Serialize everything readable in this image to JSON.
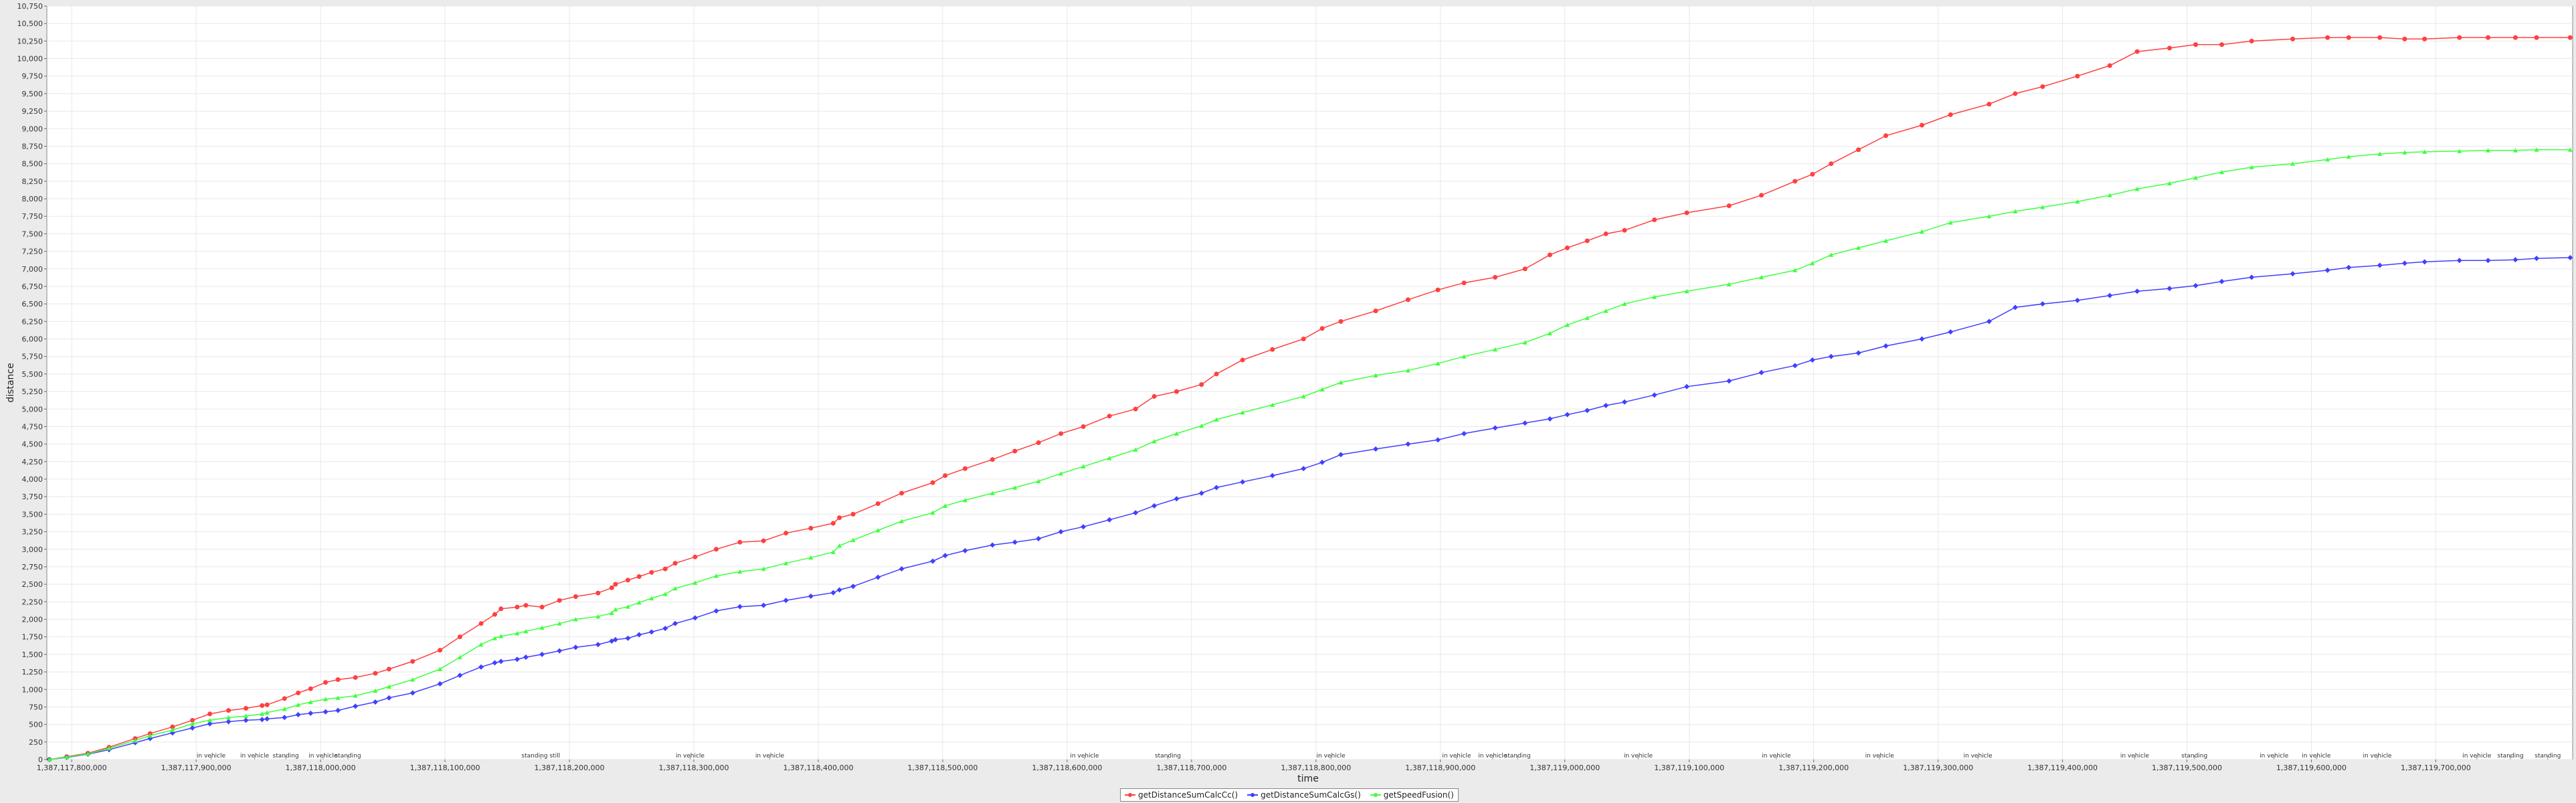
{
  "chart_data": {
    "type": "line",
    "title": "",
    "xlabel": "time",
    "ylabel": "distance",
    "xlim": [
      1387117780000,
      1387119810000
    ],
    "ylim": [
      0,
      10750
    ],
    "grid": true,
    "legend_position": "bottom-center",
    "x_ticks": [
      1387117800000,
      1387117900000,
      1387118000000,
      1387118100000,
      1387118200000,
      1387118300000,
      1387118400000,
      1387118500000,
      1387118600000,
      1387118700000,
      1387118800000,
      1387118900000,
      1387119000000,
      1387119100000,
      1387119200000,
      1387119300000,
      1387119400000,
      1387119500000,
      1387119600000,
      1387119700000
    ],
    "x_tick_labels": [
      "1,387,117,800,000",
      "1,387,117,900,000",
      "1,387,118,000,000",
      "1,387,118,100,000",
      "1,387,118,200,000",
      "1,387,118,300,000",
      "1,387,118,400,000",
      "1,387,118,500,000",
      "1,387,118,600,000",
      "1,387,118,700,000",
      "1,387,118,800,000",
      "1,387,118,900,000",
      "1,387,119,000,000",
      "1,387,119,100,000",
      "1,387,119,200,000",
      "1,387,119,300,000",
      "1,387,119,400,000",
      "1,387,119,500,000",
      "1,387,119,600,000",
      "1,387,119,700,000"
    ],
    "y_ticks": [
      0,
      250,
      500,
      750,
      1000,
      1250,
      1500,
      1750,
      2000,
      2250,
      2500,
      2750,
      3000,
      3250,
      3500,
      3750,
      4000,
      4250,
      4500,
      4750,
      5000,
      5250,
      5500,
      5750,
      6000,
      6250,
      6500,
      6750,
      7000,
      7250,
      7500,
      7750,
      8000,
      8250,
      8500,
      8750,
      9000,
      9250,
      9500,
      9750,
      10000,
      10250,
      10500,
      10750
    ],
    "y_tick_labels": [
      "0",
      "250",
      "500",
      "750",
      "1,000",
      "1,250",
      "1,500",
      "1,750",
      "2,000",
      "2,250",
      "2,500",
      "2,750",
      "3,000",
      "3,250",
      "3,500",
      "3,750",
      "4,000",
      "4,250",
      "4,500",
      "4,750",
      "5,000",
      "5,250",
      "5,500",
      "5,750",
      "6,000",
      "6,250",
      "6,500",
      "6,750",
      "7,000",
      "7,250",
      "7,500",
      "7,750",
      "8,000",
      "8,250",
      "8,500",
      "8,750",
      "9,000",
      "9,250",
      "9,500",
      "9,750",
      "10,000",
      "10,250",
      "10,500",
      "10,750"
    ],
    "activity_annotations": [
      {
        "x": 1387117912000,
        "label": "in vehicle"
      },
      {
        "x": 1387117947000,
        "label": "in vehicle"
      },
      {
        "x": 1387117972000,
        "label": "standing"
      },
      {
        "x": 1387118002000,
        "label": "in vehicle"
      },
      {
        "x": 1387118022000,
        "label": "standing"
      },
      {
        "x": 1387118177000,
        "label": "standing still"
      },
      {
        "x": 1387118297000,
        "label": "in vehicle"
      },
      {
        "x": 1387118361000,
        "label": "in vehicle"
      },
      {
        "x": 1387118614000,
        "label": "in vehicle"
      },
      {
        "x": 1387118681000,
        "label": "standing"
      },
      {
        "x": 1387118812000,
        "label": "in vehicle"
      },
      {
        "x": 1387118913000,
        "label": "in vehicle"
      },
      {
        "x": 1387118942000,
        "label": "in vehicle"
      },
      {
        "x": 1387118962000,
        "label": "standing"
      },
      {
        "x": 1387119059000,
        "label": "in vehicle"
      },
      {
        "x": 1387119170000,
        "label": "in vehicle"
      },
      {
        "x": 1387119253000,
        "label": "in vehicle"
      },
      {
        "x": 1387119332000,
        "label": "in vehicle"
      },
      {
        "x": 1387119458000,
        "label": "in vehicle"
      },
      {
        "x": 1387119506000,
        "label": "standing"
      },
      {
        "x": 1387119570000,
        "label": "in vehicle"
      },
      {
        "x": 1387119604000,
        "label": "in vehicle"
      },
      {
        "x": 1387119653000,
        "label": "in vehicle"
      },
      {
        "x": 1387119733000,
        "label": "in vehicle"
      },
      {
        "x": 1387119760000,
        "label": "standing"
      },
      {
        "x": 1387119790000,
        "label": "standing"
      }
    ],
    "series": [
      {
        "name": "getDistanceSumCalcCc()",
        "color": "#ff4040",
        "x": [
          1387117782000,
          1387117796000,
          1387117813000,
          1387117830000,
          1387117851000,
          1387117863000,
          1387117881000,
          1387117897000,
          1387117911000,
          1387117926000,
          1387117940000,
          1387117953000,
          1387117957000,
          1387117971000,
          1387117982000,
          1387117992000,
          1387118004000,
          1387118014000,
          1387118028000,
          1387118044000,
          1387118055000,
          1387118074000,
          1387118096000,
          1387118112000,
          1387118129000,
          1387118140000,
          1387118145000,
          1387118158000,
          1387118165000,
          1387118178000,
          1387118192000,
          1387118205000,
          1387118223000,
          1387118234000,
          1387118237000,
          1387118247000,
          1387118256000,
          1387118266000,
          1387118277000,
          1387118285000,
          1387118301000,
          1387118318000,
          1387118337000,
          1387118356000,
          1387118374000,
          1387118394000,
          1387118412000,
          1387118417000,
          1387118428000,
          1387118448000,
          1387118467000,
          1387118492000,
          1387118502000,
          1387118518000,
          1387118540000,
          1387118558000,
          1387118577000,
          1387118595000,
          1387118613000,
          1387118634000,
          1387118655000,
          1387118670000,
          1387118688000,
          1387118708000,
          1387118720000,
          1387118741000,
          1387118765000,
          1387118790000,
          1387118805000,
          1387118820000,
          1387118848000,
          1387118874000,
          1387118898000,
          1387118919000,
          1387118944000,
          1387118968000,
          1387118988000,
          1387119002000,
          1387119018000,
          1387119033000,
          1387119048000,
          1387119072000,
          1387119098000,
          1387119132000,
          1387119158000,
          1387119185000,
          1387119199000,
          1387119214000,
          1387119236000,
          1387119258000,
          1387119287000,
          1387119310000,
          1387119341000,
          1387119362000,
          1387119384000,
          1387119412000,
          1387119438000,
          1387119460000,
          1387119486000,
          1387119507000,
          1387119528000,
          1387119552000,
          1387119585000,
          1387119613000,
          1387119630000,
          1387119655000,
          1387119675000,
          1387119691000,
          1387119719000,
          1387119742000,
          1387119764000,
          1387119781000,
          1387119808000
        ],
        "values": [
          0,
          40,
          90,
          175,
          300,
          370,
          465,
          560,
          650,
          700,
          730,
          770,
          780,
          870,
          950,
          1010,
          1100,
          1140,
          1170,
          1230,
          1290,
          1400,
          1560,
          1750,
          1940,
          2070,
          2150,
          2175,
          2200,
          2175,
          2270,
          2325,
          2375,
          2450,
          2500,
          2560,
          2610,
          2670,
          2720,
          2800,
          2890,
          3000,
          3100,
          3120,
          3230,
          3300,
          3370,
          3450,
          3500,
          3650,
          3800,
          3950,
          4050,
          4150,
          4280,
          4400,
          4520,
          4650,
          4750,
          4900,
          5000,
          5180,
          5250,
          5350,
          5500,
          5700,
          5850,
          6000,
          6150,
          6250,
          6400,
          6560,
          6700,
          6800,
          6880,
          7000,
          7200,
          7300,
          7400,
          7500,
          7550,
          7700,
          7800,
          7900,
          8050,
          8250,
          8350,
          8500,
          8700,
          8900,
          9050,
          9200,
          9350,
          9500,
          9600,
          9750,
          9900,
          10100,
          10150,
          10200,
          10200,
          10250,
          10280,
          10300,
          10300,
          10300,
          10280,
          10280,
          10300,
          10300,
          10300,
          10300,
          10300
        ]
      },
      {
        "name": "getDistanceSumCalcGs()",
        "color": "#4040ff",
        "x": [
          1387117782000,
          1387117796000,
          1387117813000,
          1387117830000,
          1387117851000,
          1387117863000,
          1387117881000,
          1387117897000,
          1387117911000,
          1387117926000,
          1387117940000,
          1387117953000,
          1387117957000,
          1387117971000,
          1387117982000,
          1387117992000,
          1387118004000,
          1387118014000,
          1387118028000,
          1387118044000,
          1387118055000,
          1387118074000,
          1387118096000,
          1387118112000,
          1387118129000,
          1387118140000,
          1387118145000,
          1387118158000,
          1387118165000,
          1387118178000,
          1387118192000,
          1387118205000,
          1387118223000,
          1387118234000,
          1387118237000,
          1387118247000,
          1387118256000,
          1387118266000,
          1387118277000,
          1387118285000,
          1387118301000,
          1387118318000,
          1387118337000,
          1387118356000,
          1387118374000,
          1387118394000,
          1387118412000,
          1387118417000,
          1387118428000,
          1387118448000,
          1387118467000,
          1387118492000,
          1387118502000,
          1387118518000,
          1387118540000,
          1387118558000,
          1387118577000,
          1387118595000,
          1387118613000,
          1387118634000,
          1387118655000,
          1387118670000,
          1387118688000,
          1387118708000,
          1387118720000,
          1387118741000,
          1387118765000,
          1387118790000,
          1387118805000,
          1387118820000,
          1387118848000,
          1387118874000,
          1387118898000,
          1387118919000,
          1387118944000,
          1387118968000,
          1387118988000,
          1387119002000,
          1387119018000,
          1387119033000,
          1387119048000,
          1387119072000,
          1387119098000,
          1387119132000,
          1387119158000,
          1387119185000,
          1387119199000,
          1387119214000,
          1387119236000,
          1387119258000,
          1387119287000,
          1387119310000,
          1387119341000,
          1387119362000,
          1387119384000,
          1387119412000,
          1387119438000,
          1387119460000,
          1387119486000,
          1387119507000,
          1387119528000,
          1387119552000,
          1387119585000,
          1387119613000,
          1387119630000,
          1387119655000,
          1387119675000,
          1387119691000,
          1387119719000,
          1387119742000,
          1387119764000,
          1387119781000,
          1387119808000
        ],
        "values": [
          0,
          30,
          75,
          140,
          240,
          300,
          380,
          450,
          510,
          540,
          560,
          570,
          580,
          600,
          640,
          660,
          680,
          700,
          760,
          820,
          880,
          950,
          1080,
          1200,
          1320,
          1380,
          1400,
          1430,
          1460,
          1500,
          1550,
          1600,
          1640,
          1690,
          1710,
          1730,
          1780,
          1820,
          1870,
          1940,
          2020,
          2120,
          2180,
          2200,
          2270,
          2330,
          2380,
          2420,
          2470,
          2600,
          2720,
          2830,
          2910,
          2980,
          3060,
          3100,
          3150,
          3250,
          3320,
          3420,
          3520,
          3620,
          3720,
          3800,
          3880,
          3960,
          4050,
          4150,
          4240,
          4350,
          4430,
          4500,
          4560,
          4650,
          4730,
          4800,
          4860,
          4920,
          4980,
          5050,
          5100,
          5200,
          5320,
          5400,
          5520,
          5620,
          5700,
          5750,
          5800,
          5900,
          6000,
          6100,
          6250,
          6450,
          6500,
          6550,
          6620,
          6680,
          6720,
          6760,
          6820,
          6880,
          6930,
          6980,
          7020,
          7050,
          7080,
          7100,
          7120,
          7120,
          7130,
          7150,
          7160
        ]
      },
      {
        "name": "getSpeedFusion()",
        "color": "#40ff40",
        "x": [
          1387117782000,
          1387117796000,
          1387117813000,
          1387117830000,
          1387117851000,
          1387117863000,
          1387117881000,
          1387117897000,
          1387117911000,
          1387117926000,
          1387117940000,
          1387117953000,
          1387117957000,
          1387117971000,
          1387117982000,
          1387117992000,
          1387118004000,
          1387118014000,
          1387118028000,
          1387118044000,
          1387118055000,
          1387118074000,
          1387118096000,
          1387118112000,
          1387118129000,
          1387118140000,
          1387118145000,
          1387118158000,
          1387118165000,
          1387118178000,
          1387118192000,
          1387118205000,
          1387118223000,
          1387118234000,
          1387118237000,
          1387118247000,
          1387118256000,
          1387118266000,
          1387118277000,
          1387118285000,
          1387118301000,
          1387118318000,
          1387118337000,
          1387118356000,
          1387118374000,
          1387118394000,
          1387118412000,
          1387118417000,
          1387118428000,
          1387118448000,
          1387118467000,
          1387118492000,
          1387118502000,
          1387118518000,
          1387118540000,
          1387118558000,
          1387118577000,
          1387118595000,
          1387118613000,
          1387118634000,
          1387118655000,
          1387118670000,
          1387118688000,
          1387118708000,
          1387118720000,
          1387118741000,
          1387118765000,
          1387118790000,
          1387118805000,
          1387118820000,
          1387118848000,
          1387118874000,
          1387118898000,
          1387118919000,
          1387118944000,
          1387118968000,
          1387118988000,
          1387119002000,
          1387119018000,
          1387119033000,
          1387119048000,
          1387119072000,
          1387119098000,
          1387119132000,
          1387119158000,
          1387119185000,
          1387119199000,
          1387119214000,
          1387119236000,
          1387119258000,
          1387119287000,
          1387119310000,
          1387119341000,
          1387119362000,
          1387119384000,
          1387119412000,
          1387119438000,
          1387119460000,
          1387119486000,
          1387119507000,
          1387119528000,
          1387119552000,
          1387119585000,
          1387119613000,
          1387119630000,
          1387119655000,
          1387119675000,
          1387119691000,
          1387119719000,
          1387119742000,
          1387119764000,
          1387119781000,
          1387119808000
        ],
        "values": [
          0,
          35,
          80,
          160,
          270,
          340,
          420,
          510,
          560,
          600,
          620,
          650,
          670,
          720,
          780,
          820,
          860,
          880,
          910,
          980,
          1040,
          1140,
          1290,
          1460,
          1640,
          1730,
          1760,
          1800,
          1830,
          1880,
          1940,
          2000,
          2040,
          2090,
          2140,
          2180,
          2240,
          2300,
          2360,
          2440,
          2520,
          2620,
          2680,
          2720,
          2800,
          2880,
          2960,
          3050,
          3130,
          3270,
          3400,
          3520,
          3620,
          3700,
          3800,
          3880,
          3970,
          4080,
          4180,
          4300,
          4420,
          4540,
          4650,
          4760,
          4850,
          4950,
          5060,
          5180,
          5280,
          5380,
          5480,
          5550,
          5650,
          5750,
          5850,
          5950,
          6080,
          6200,
          6300,
          6400,
          6500,
          6600,
          6680,
          6780,
          6880,
          6980,
          7080,
          7200,
          7300,
          7400,
          7530,
          7660,
          7750,
          7820,
          7880,
          7960,
          8050,
          8140,
          8220,
          8300,
          8380,
          8450,
          8500,
          8560,
          8600,
          8640,
          8660,
          8670,
          8680,
          8690,
          8690,
          8700,
          8700
        ]
      }
    ]
  }
}
